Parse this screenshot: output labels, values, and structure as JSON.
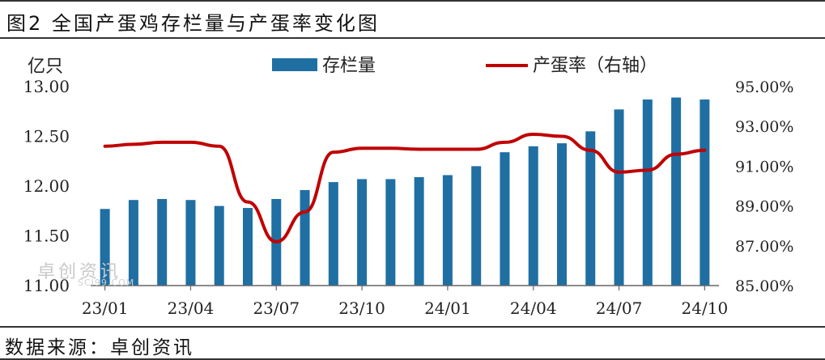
{
  "title": "图2 全国产蛋鸡存栏量与产蛋率变化图",
  "source": "数据来源：卓创资讯",
  "watermark": {
    "text": "卓创资讯",
    "sub": "SCI99.COM"
  },
  "colors": {
    "bar": "#1f6fa3",
    "line": "#c00000"
  },
  "chart_data": {
    "type": "bar+line",
    "y_left_label": "亿只",
    "ylim_left": [
      11.0,
      13.0
    ],
    "ylim_right": [
      85.0,
      95.0
    ],
    "left_ticks": [
      "13.00",
      "12.50",
      "12.00",
      "11.50",
      "11.00"
    ],
    "right_ticks": [
      "95.00%",
      "93.00%",
      "91.00%",
      "89.00%",
      "87.00%",
      "85.00%"
    ],
    "x_tick_labels": [
      "23/01",
      "23/04",
      "23/07",
      "23/10",
      "24/01",
      "24/04",
      "24/07",
      "24/10"
    ],
    "categories": [
      "23/01",
      "23/02",
      "23/03",
      "23/04",
      "23/05",
      "23/06",
      "23/07",
      "23/08",
      "23/09",
      "23/10",
      "23/11",
      "23/12",
      "24/01",
      "24/02",
      "24/03",
      "24/04",
      "24/05",
      "24/06",
      "24/07",
      "24/08",
      "24/09",
      "24/10"
    ],
    "legend_position": "top-center",
    "series": [
      {
        "name": "存栏量",
        "type": "bar",
        "axis": "left",
        "values": [
          11.77,
          11.86,
          11.87,
          11.86,
          11.8,
          11.78,
          11.87,
          11.96,
          12.04,
          12.07,
          12.07,
          12.09,
          12.11,
          12.2,
          12.34,
          12.4,
          12.43,
          12.55,
          12.77,
          12.87,
          12.89,
          12.87
        ]
      },
      {
        "name": "产蛋率（右轴）",
        "type": "line",
        "axis": "right",
        "values": [
          92.0,
          92.1,
          92.2,
          92.2,
          92.0,
          89.2,
          87.2,
          88.7,
          91.7,
          91.9,
          91.9,
          91.85,
          91.85,
          91.85,
          92.2,
          92.6,
          92.5,
          91.8,
          90.7,
          90.8,
          91.6,
          91.8
        ]
      }
    ]
  }
}
